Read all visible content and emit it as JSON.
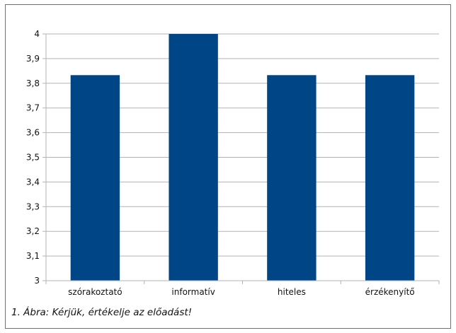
{
  "chart_data": {
    "type": "bar",
    "categories": [
      "szórakoztató",
      "informatív",
      "hiteles",
      "érzékenyítő"
    ],
    "values": [
      3.833,
      4.0,
      3.833,
      3.833
    ],
    "ylim": [
      3,
      4
    ],
    "yticks": [
      "3",
      "3,1",
      "3,2",
      "3,3",
      "3,4",
      "3,5",
      "3,6",
      "3,7",
      "3,8",
      "3,9",
      "4"
    ],
    "grid": true,
    "legend": "none",
    "bar_color": "#004586"
  },
  "caption": "1. Ábra: Kérjük, értékelje az előadást!"
}
